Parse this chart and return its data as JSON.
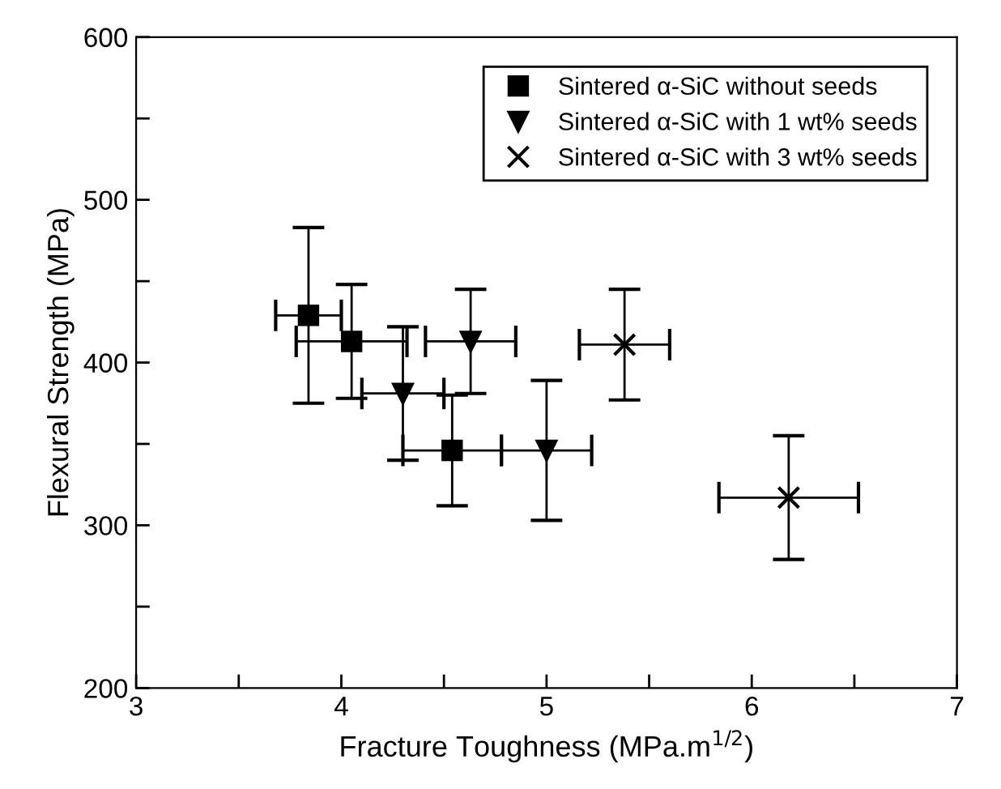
{
  "chart_data": {
    "type": "scatter",
    "xlabel": "Fracture Toughness (MPa.m$^{1/2}$)",
    "ylabel": "Flexural Strength (MPa)",
    "xlim": [
      3,
      7
    ],
    "xticks": [
      3,
      {
        "value": 3.5,
        "label": null
      },
      4,
      {
        "value": 4.5,
        "label": null
      },
      5,
      {
        "value": 5.5,
        "label": null
      },
      6,
      {
        "value": 6.5,
        "label": null
      },
      7
    ],
    "ylim": [
      200,
      600
    ],
    "yticks": [
      200,
      {
        "value": 250,
        "label": null
      },
      300,
      {
        "value": 350,
        "label": null
      },
      400,
      {
        "value": 450,
        "label": null
      },
      500,
      {
        "value": 550,
        "label": null
      },
      600
    ],
    "grid": false,
    "legend": "top right",
    "series": [
      {
        "name": "Sintered α-SiC without seeds",
        "color": "#000000",
        "marker": "square",
        "x": [
          3.84,
          4.05,
          4.54
        ],
        "values": [
          429,
          413,
          346
        ],
        "errors": [
          54,
          35,
          34
        ],
        "xerrors": [
          0.16,
          0.27,
          0.24
        ]
      },
      {
        "name": "Sintered α-SiC with 1 wt% seeds",
        "color": "#000000",
        "marker": "triangle",
        "x": [
          4.3,
          4.63,
          5.0
        ],
        "values": [
          381,
          413,
          346
        ],
        "errors": [
          41,
          32,
          43
        ],
        "xerrors": [
          0.2,
          0.22,
          0.22
        ]
      },
      {
        "name": "Sintered α-SiC with 3 wt% seeds",
        "color": "#000000",
        "marker": "cross",
        "x": [
          5.38,
          6.18
        ],
        "values": [
          411,
          317
        ],
        "errors": [
          34,
          38
        ],
        "xerrors": [
          0.22,
          0.34
        ]
      }
    ]
  }
}
